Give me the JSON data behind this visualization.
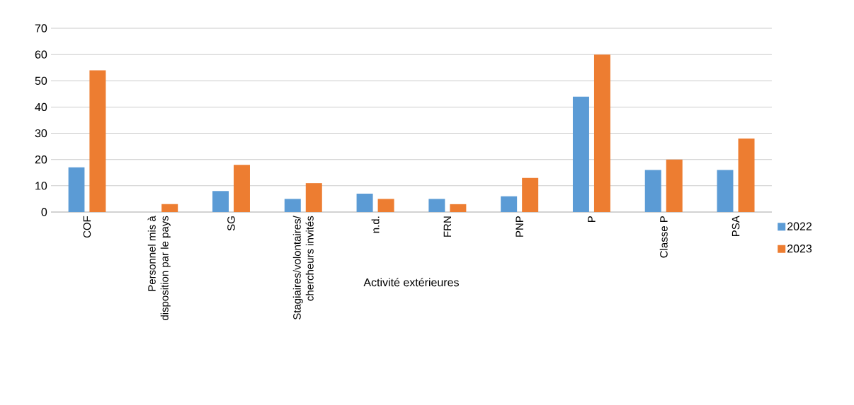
{
  "chart_data": {
    "type": "bar",
    "xlabel": "Activité extérieures",
    "categories": [
      "COF",
      "Personnel mis à disposition par le pays",
      "SG",
      "Stagiaires/volontaires/ chercheurs invités",
      "n.d.",
      "FRN",
      "PNP",
      "P",
      "Classe P",
      "PSA"
    ],
    "series": [
      {
        "name": "2022",
        "color": "#5b9bd5",
        "values": [
          17,
          null,
          8,
          5,
          7,
          5,
          6,
          44,
          16,
          16
        ]
      },
      {
        "name": "2023",
        "color": "#ed7d31",
        "values": [
          54,
          3,
          18,
          11,
          5,
          3,
          13,
          60,
          20,
          28
        ]
      }
    ],
    "ylim": [
      0,
      70
    ],
    "yticks": [
      0,
      10,
      20,
      30,
      40,
      50,
      60,
      70
    ],
    "grid": "y",
    "legend": "right"
  }
}
